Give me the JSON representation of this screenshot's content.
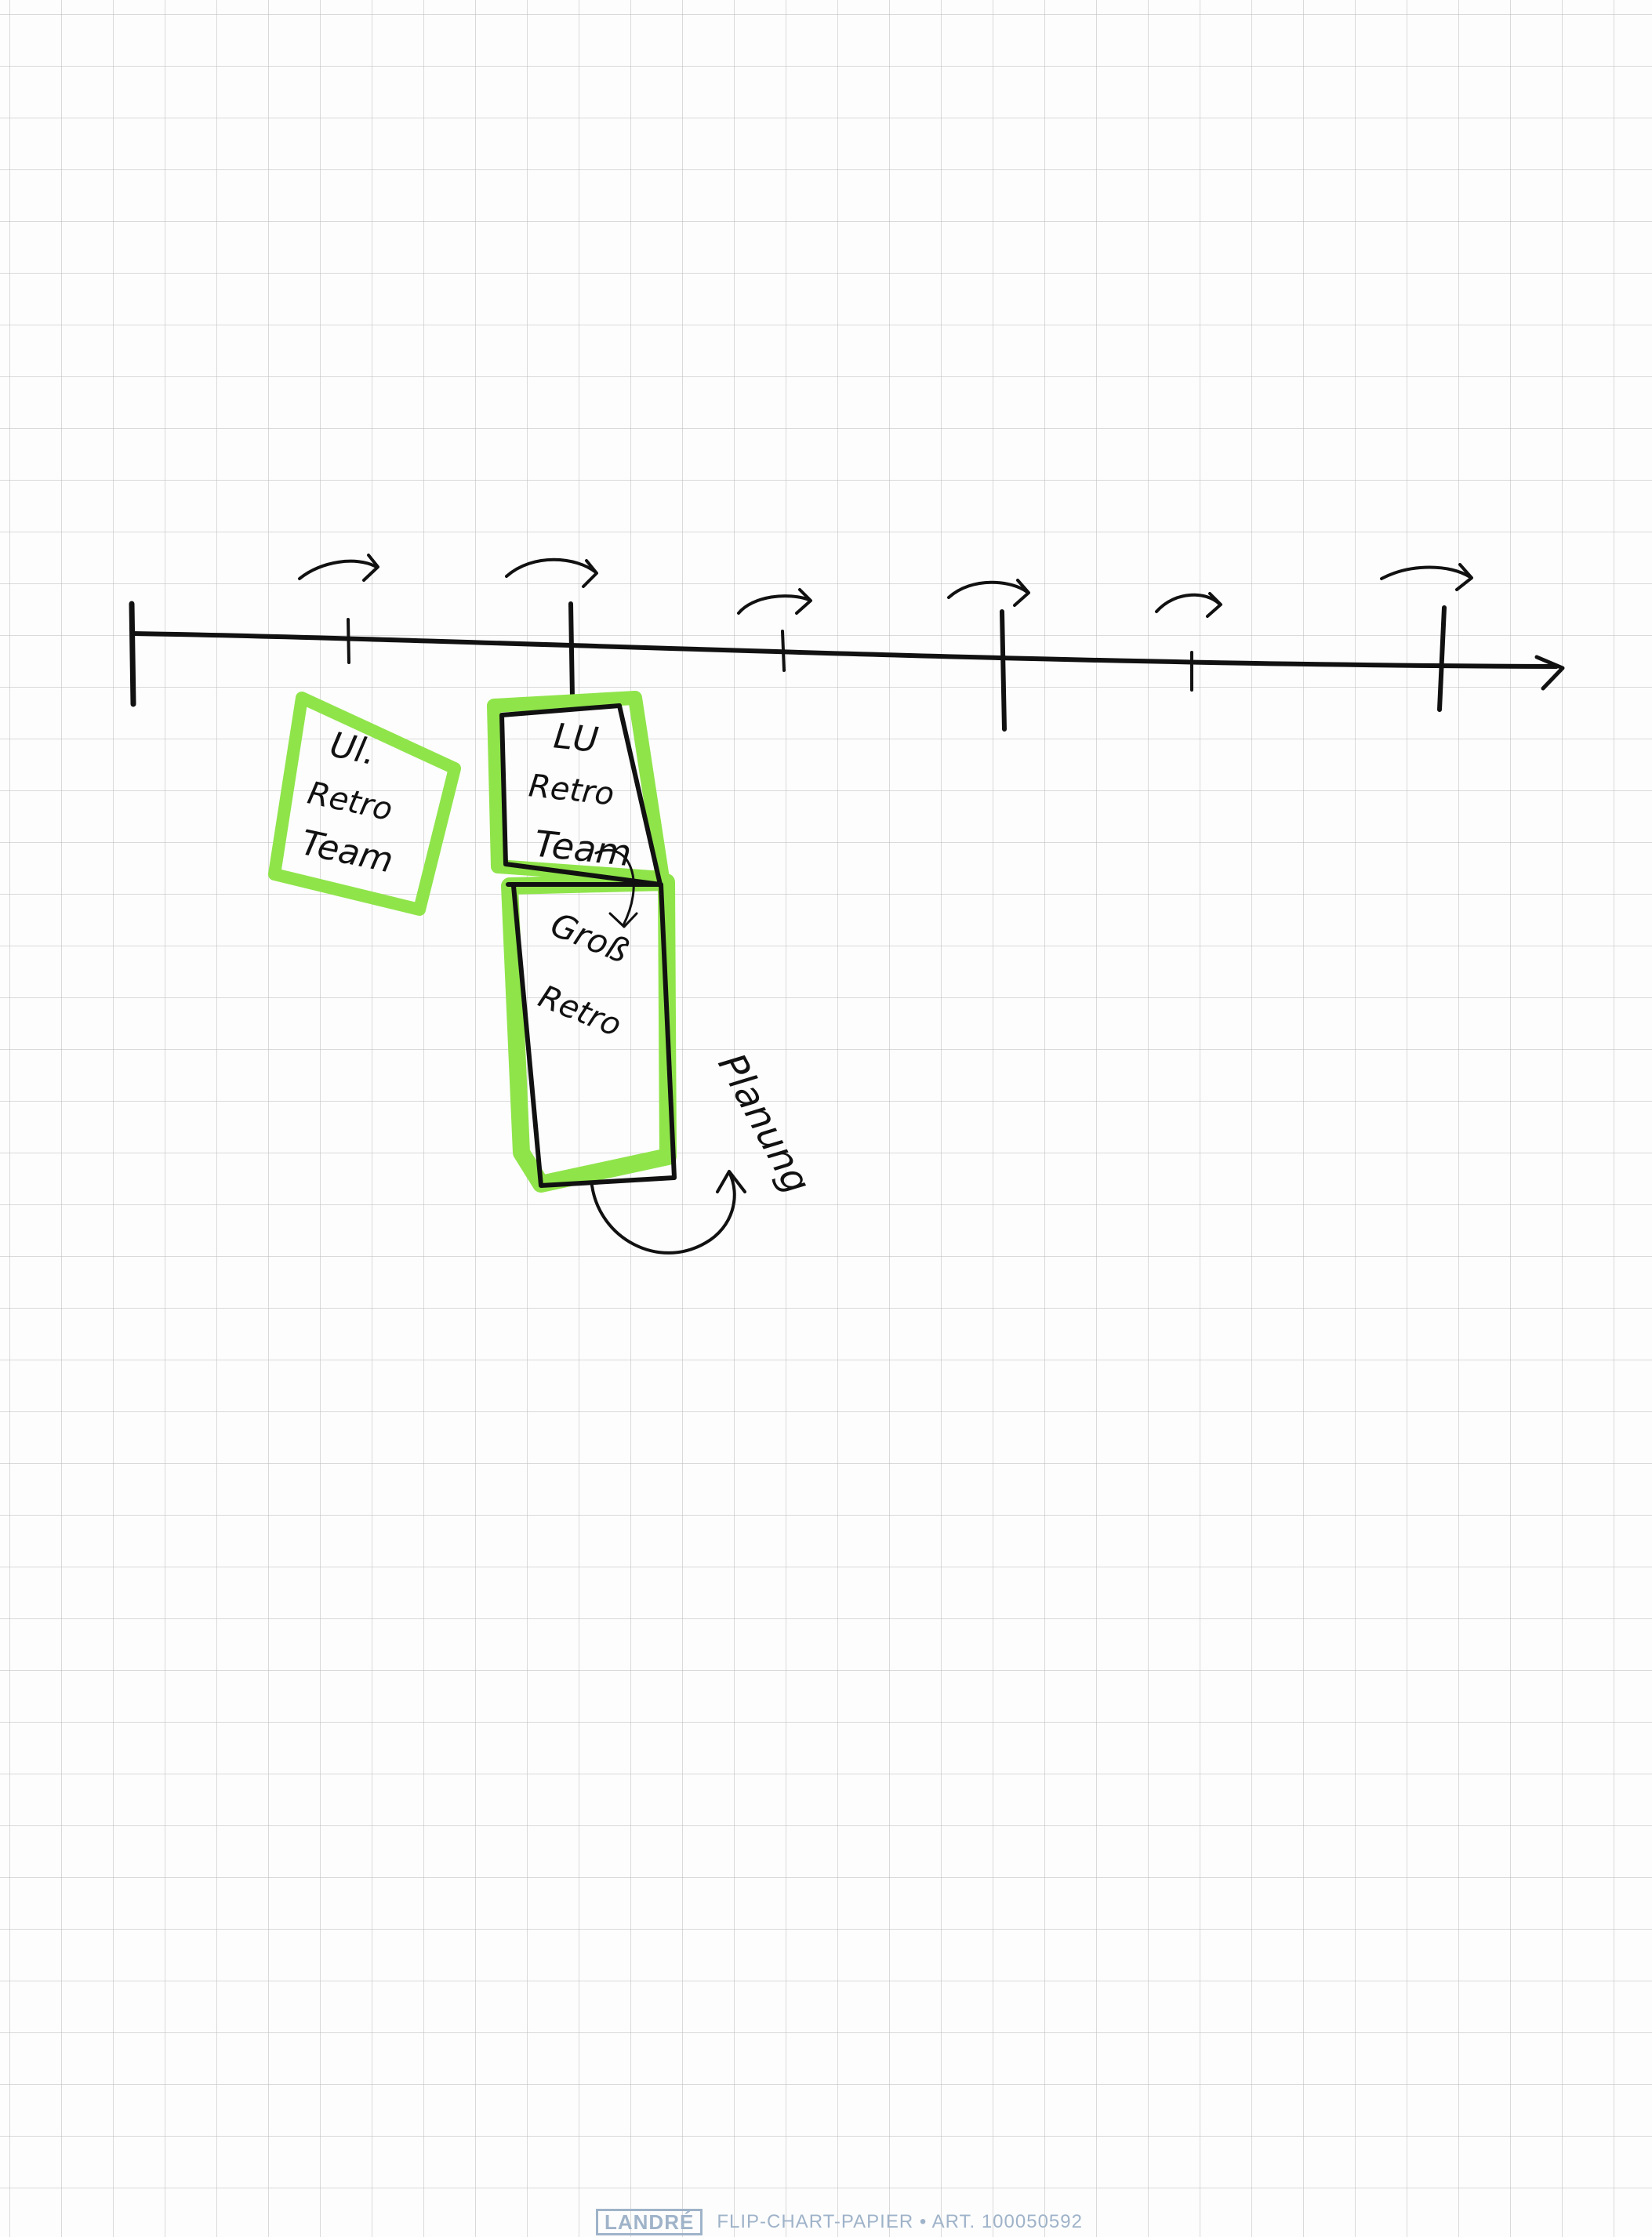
{
  "notes": [
    {
      "id": "note-1",
      "lines": [
        "Ul.",
        "Retro",
        "Team"
      ]
    },
    {
      "id": "note-2",
      "lines": [
        "LU",
        "Retro",
        "Team"
      ]
    },
    {
      "id": "note-3",
      "lines": [
        "Groß",
        "Retro"
      ]
    }
  ],
  "annotation": "Planung",
  "footer": {
    "brand": "LANDRÉ",
    "product": "FLIP-CHART-PAPIER • ART. 100050592"
  },
  "colors": {
    "ink": "#111111",
    "highlighter": "#8fe44a",
    "paper": "#fdfdfd",
    "grid": "#bebebe",
    "brand": "#9fb3c9"
  }
}
